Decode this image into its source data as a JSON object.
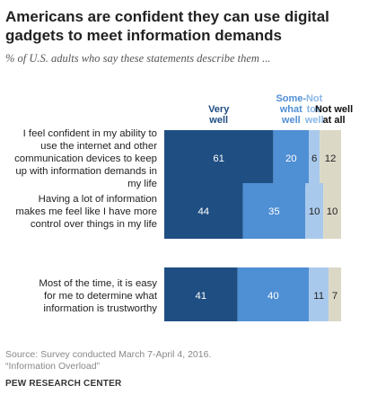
{
  "title": "Americans are confident they can use digital gadgets to meet information demands",
  "subtitle": "% of U.S. adults who say these statements describe them ...",
  "chart_data": {
    "type": "bar",
    "orientation": "horizontal",
    "stacked": true,
    "categories": [
      [
        "I feel confident in my ability to",
        "use the internet and other",
        "communication devices to keep",
        "up with information demands in",
        "my life"
      ],
      [
        "Having a lot of information",
        "makes me feel like I have more",
        "control over things in my life"
      ],
      [
        "Most of the time, it is easy",
        "for me to determine what",
        "information is trustworthy"
      ]
    ],
    "series": [
      {
        "name": [
          "Very",
          "well"
        ],
        "color": "#1f4e82",
        "label_color": "#1f4e82",
        "value_color": "#ffffff",
        "values": [
          61,
          44,
          41
        ]
      },
      {
        "name": [
          "Some-",
          "what",
          "well"
        ],
        "color": "#4f8fd4",
        "label_color": "#4f8fd4",
        "value_color": "#ffffff",
        "values": [
          20,
          35,
          40
        ]
      },
      {
        "name": [
          "Not",
          "too",
          "well"
        ],
        "color": "#a9c9ec",
        "label_color": "#8ab6e6",
        "value_color": "#222222",
        "values": [
          6,
          10,
          11
        ]
      },
      {
        "name": [
          "Not well",
          "at all"
        ],
        "color": "#dcd8c6",
        "label_color": "#111111",
        "value_color": "#222222",
        "values": [
          12,
          10,
          7
        ]
      }
    ],
    "xlim": [
      0,
      100
    ],
    "legend": "top"
  },
  "source_lines": [
    "Source: Survey conducted March 7-April 4, 2016.",
    "“Information Overload”"
  ],
  "brand": "PEW RESEARCH CENTER"
}
